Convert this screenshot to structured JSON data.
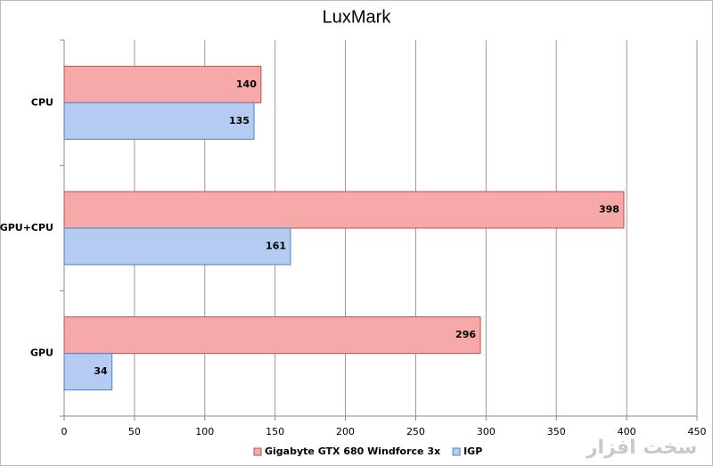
{
  "chart_data": {
    "type": "bar",
    "orientation": "horizontal",
    "title": "LuxMark",
    "categories": [
      "CPU",
      "GPU+CPU",
      "GPU"
    ],
    "series": [
      {
        "name": "Gigabyte GTX 680 Windforce 3x",
        "color": "#f6a9a8",
        "values": [
          140,
          398,
          296
        ]
      },
      {
        "name": "IGP",
        "color": "#b4cbf2",
        "values": [
          135,
          161,
          34
        ]
      }
    ],
    "xlim": [
      0,
      450
    ],
    "xticks": [
      0,
      50,
      100,
      150,
      200,
      250,
      300,
      350,
      400,
      450
    ],
    "grid": true,
    "legend": "bottom",
    "watermark": "سخت افزار"
  }
}
